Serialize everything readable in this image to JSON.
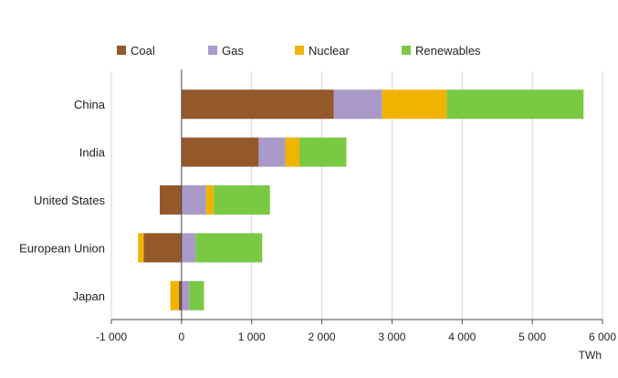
{
  "chart_data": {
    "type": "bar",
    "orientation": "horizontal",
    "stacked": true,
    "categories": [
      "China",
      "India",
      "United States",
      "European Union",
      "Japan"
    ],
    "series": [
      {
        "name": "Coal",
        "color": "#94582a",
        "values": [
          2170,
          1100,
          -310,
          -540,
          -40
        ]
      },
      {
        "name": "Gas",
        "color": "#a99ac9",
        "values": [
          690,
          380,
          350,
          200,
          110
        ]
      },
      {
        "name": "Nuclear",
        "color": "#f0b400",
        "values": [
          920,
          200,
          110,
          -80,
          -120
        ]
      },
      {
        "name": "Renewables",
        "color": "#7ac943",
        "values": [
          1950,
          670,
          800,
          950,
          210
        ]
      }
    ],
    "xlim": [
      -1000,
      6000
    ],
    "xticks": [
      -1000,
      0,
      1000,
      2000,
      3000,
      4000,
      5000,
      6000
    ],
    "xtick_labels": [
      "-1 000",
      "0",
      "1 000",
      "2 000",
      "3 000",
      "4 000",
      "5 000",
      "6 000"
    ],
    "xlabel": "TWh",
    "ylabel": "",
    "title": "",
    "grid": "vertical",
    "legend_position": "top"
  }
}
